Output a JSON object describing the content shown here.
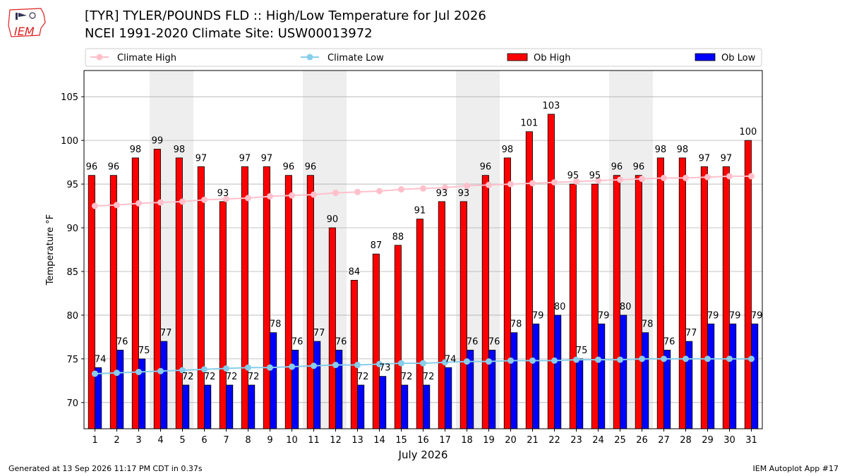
{
  "header": {
    "title_line1": "[TYR] TYLER/POUNDS FLD :: High/Low Temperature for Jul 2026",
    "title_line2": "NCEI 1991-2020 Climate Site: USW00013972",
    "logo_text": "IEM"
  },
  "footer": {
    "left": "Generated at 13 Sep 2026 11:17 PM CDT in 0.37s",
    "right": "IEM Autoplot App #17"
  },
  "colors": {
    "ob_high": "#ff0000",
    "ob_low": "#0000ff",
    "climate_high": "#ffc0cb",
    "climate_low": "#87ceeb",
    "weekend_shade": "#eeeeee",
    "grid": "#b0b0b0",
    "logo": "#d22"
  },
  "chart_data": {
    "type": "bar",
    "xlabel": "July 2026",
    "ylabel": "Temperature °F",
    "ylim": [
      67,
      108
    ],
    "yticks": [
      70,
      75,
      80,
      85,
      90,
      95,
      100,
      105
    ],
    "grid": true,
    "legend_position": "top",
    "categories": [
      "1",
      "2",
      "3",
      "4",
      "5",
      "6",
      "7",
      "8",
      "9",
      "10",
      "11",
      "12",
      "13",
      "14",
      "15",
      "16",
      "17",
      "18",
      "19",
      "20",
      "21",
      "22",
      "23",
      "24",
      "25",
      "26",
      "27",
      "28",
      "29",
      "30",
      "31"
    ],
    "shaded_days": [
      4,
      5,
      11,
      12,
      18,
      19,
      25,
      26
    ],
    "series": [
      {
        "name": "Ob High",
        "kind": "bar",
        "values": [
          96,
          96,
          98,
          99,
          98,
          97,
          93,
          97,
          97,
          96,
          96,
          90,
          84,
          87,
          88,
          91,
          93,
          93,
          96,
          98,
          101,
          103,
          95,
          95,
          96,
          96,
          98,
          98,
          97,
          97,
          100
        ]
      },
      {
        "name": "Ob Low",
        "kind": "bar",
        "values": [
          74,
          76,
          75,
          77,
          72,
          72,
          72,
          72,
          78,
          76,
          77,
          76,
          72,
          73,
          72,
          72,
          74,
          76,
          76,
          78,
          79,
          80,
          75,
          79,
          80,
          78,
          76,
          77,
          79,
          79,
          79
        ]
      },
      {
        "name": "Climate High",
        "kind": "line",
        "values": [
          92.5,
          92.6,
          92.8,
          92.9,
          93.0,
          93.2,
          93.3,
          93.4,
          93.6,
          93.7,
          93.8,
          94.0,
          94.1,
          94.2,
          94.4,
          94.5,
          94.6,
          94.8,
          94.9,
          95.0,
          95.1,
          95.2,
          95.3,
          95.4,
          95.5,
          95.6,
          95.7,
          95.7,
          95.8,
          95.9,
          95.9
        ]
      },
      {
        "name": "Climate Low",
        "kind": "line",
        "values": [
          73.3,
          73.4,
          73.5,
          73.6,
          73.7,
          73.8,
          73.9,
          74.0,
          74.0,
          74.1,
          74.2,
          74.3,
          74.3,
          74.4,
          74.5,
          74.5,
          74.6,
          74.7,
          74.7,
          74.8,
          74.8,
          74.8,
          74.9,
          74.9,
          74.9,
          75.0,
          75.0,
          75.0,
          75.0,
          75.0,
          75.0
        ]
      }
    ]
  }
}
